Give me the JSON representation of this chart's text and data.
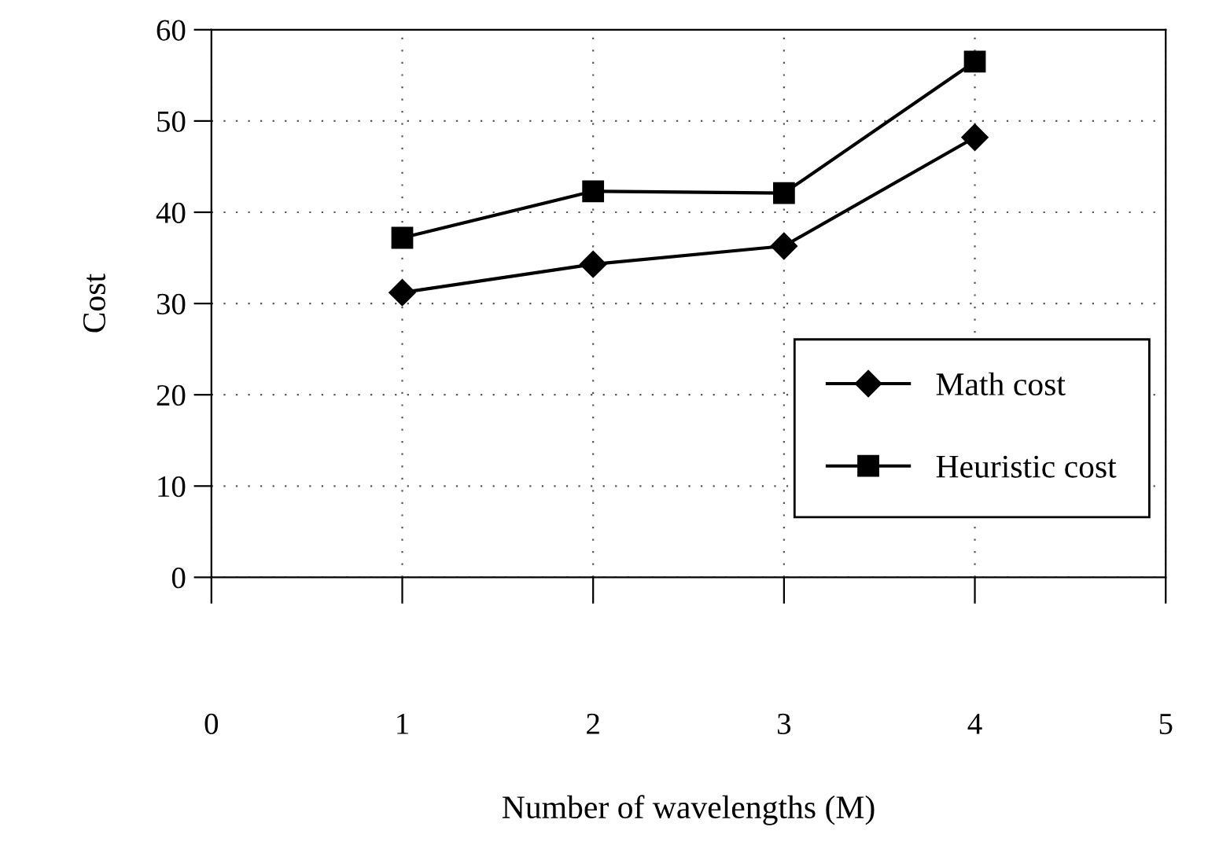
{
  "chart_data": {
    "type": "line",
    "xlabel": "Number of wavelengths (M)",
    "ylabel": "Cost",
    "x": [
      1,
      2,
      3,
      4
    ],
    "series": [
      {
        "name": "Math cost",
        "color": "#000000",
        "marker": "diamond",
        "values": [
          31.2,
          34.3,
          36.3,
          48.2
        ]
      },
      {
        "name": "Heuristic cost",
        "color": "#000000",
        "marker": "square",
        "values": [
          37.2,
          42.3,
          42.1,
          56.5
        ]
      }
    ],
    "xlim": [
      0,
      5
    ],
    "xticks": [
      0,
      1,
      2,
      3,
      4,
      5
    ],
    "ylim": [
      0,
      60
    ],
    "yticks": [
      0,
      10,
      20,
      30,
      40,
      50,
      60
    ],
    "grid": true,
    "legend": "bottom right",
    "line_style": "solid"
  }
}
